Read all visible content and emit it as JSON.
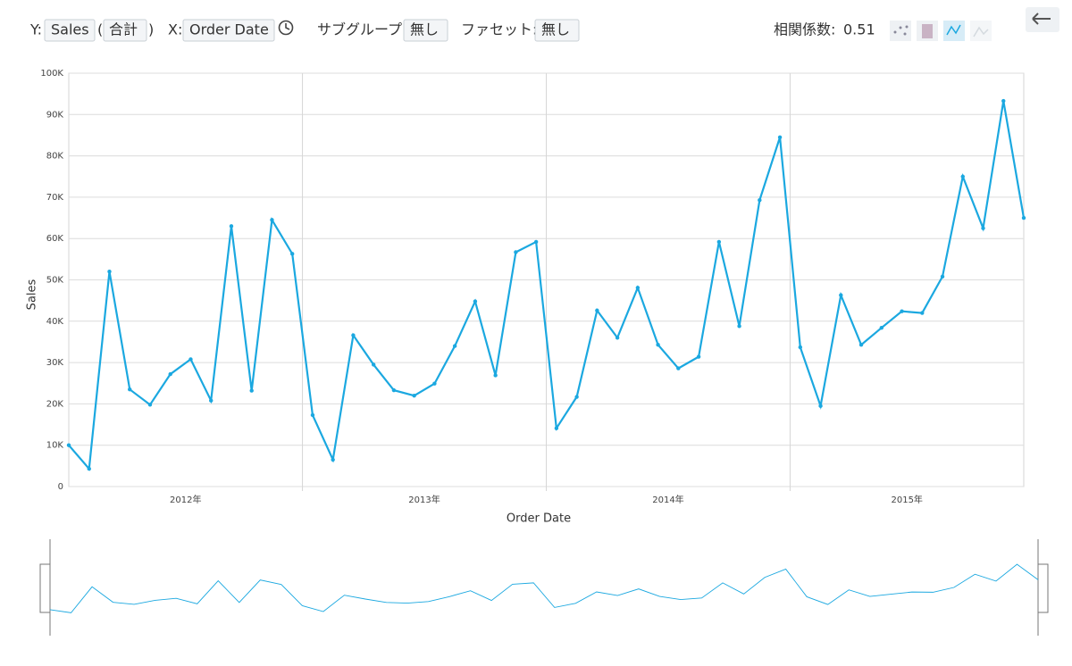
{
  "toolbar": {
    "y_label": "Y:",
    "y_field": "Sales",
    "paren_open": "(",
    "aggregation": "合計",
    "paren_close": ")",
    "x_label": "X:",
    "x_field": "Order Date",
    "subgroup_label": "サブグループ:",
    "subgroup_value": "無し",
    "facet_label": "ファセット:",
    "facet_value": "無し",
    "correlation_label": "相関係数:",
    "correlation_value": 0.51
  },
  "chart_data": {
    "type": "line",
    "x_label": "Order Date",
    "y_label": "Sales",
    "categories": [
      null,
      null,
      null,
      null,
      null,
      null,
      null,
      null,
      null,
      null,
      null,
      null,
      null,
      null,
      null,
      null,
      null,
      null,
      null,
      null,
      null,
      null,
      null,
      null,
      null,
      null,
      null,
      null,
      null,
      null,
      null,
      null,
      null,
      null,
      null,
      null,
      null,
      null,
      null,
      null,
      null,
      null,
      null,
      null,
      null,
      null,
      null,
      null
    ],
    "x_groups": [
      "2012年",
      "2013年",
      "2014年",
      "2015年"
    ],
    "series": [
      {
        "color": "#1ba8e0",
        "values": [
          10000,
          4300,
          52000,
          23500,
          19800,
          27200,
          30800,
          20800,
          63000,
          23200,
          64500,
          56300,
          17300,
          6500,
          36600,
          29500,
          23300,
          22000,
          24900,
          34000,
          44800,
          26900,
          56700,
          59200,
          14100,
          21700,
          42600,
          36000,
          48100,
          34300,
          28600,
          31400,
          59200,
          38800,
          69300,
          84500,
          33700,
          19500,
          46300,
          34300,
          38400,
          42400,
          42000,
          50800,
          75000,
          62500,
          93300,
          65000
        ]
      }
    ],
    "ylim": [
      0,
      100000
    ],
    "yticks": [
      0,
      {
        "value": 10000,
        "label": "10K"
      },
      {
        "value": 20000,
        "label": "20K"
      },
      {
        "value": 30000,
        "label": "30K"
      },
      {
        "value": 40000,
        "label": "40K"
      },
      {
        "value": 50000,
        "label": "50K"
      },
      {
        "value": 60000,
        "label": "60K"
      },
      {
        "value": 70000,
        "label": "70K"
      },
      {
        "value": 80000,
        "label": "80K"
      },
      {
        "value": 90000,
        "label": "90K"
      },
      {
        "value": 100000,
        "label": "100K"
      }
    ],
    "grid": true,
    "navigator": true
  }
}
